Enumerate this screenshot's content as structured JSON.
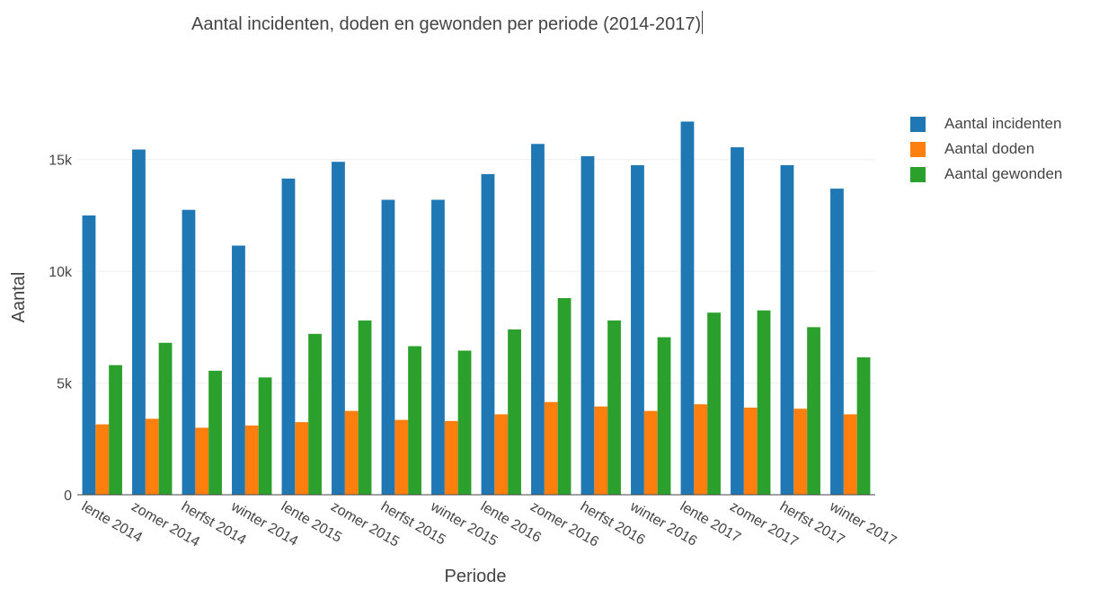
{
  "chart_data": {
    "type": "bar",
    "title": "Aantal incidenten, doden en gewonden per periode (2014-2017)",
    "xlabel": "Periode",
    "ylabel": "Aantal",
    "ylim": [
      0,
      17500
    ],
    "yticks": [
      0,
      5000,
      10000,
      15000
    ],
    "ytick_labels": [
      "0",
      "5k",
      "10k",
      "15k"
    ],
    "grid": true,
    "legend_position": "top-right",
    "categories": [
      "lente 2014",
      "zomer 2014",
      "herfst 2014",
      "winter 2014",
      "lente 2015",
      "zomer 2015",
      "herfst 2015",
      "winter 2015",
      "lente 2016",
      "zomer 2016",
      "herfst 2016",
      "winter 2016",
      "lente 2017",
      "zomer 2017",
      "herfst 2017",
      "winter 2017"
    ],
    "series": [
      {
        "name": "Aantal incidenten",
        "color": "#1f77b4",
        "values": [
          12500,
          15450,
          12750,
          11150,
          14150,
          14900,
          13200,
          13200,
          14350,
          15700,
          15150,
          14750,
          16700,
          15550,
          14750,
          13700
        ]
      },
      {
        "name": "Aantal doden",
        "color": "#ff7f0e",
        "values": [
          3150,
          3400,
          3000,
          3100,
          3250,
          3750,
          3350,
          3300,
          3600,
          4150,
          3950,
          3750,
          4050,
          3900,
          3850,
          3600
        ]
      },
      {
        "name": "Aantal gewonden",
        "color": "#2ca02c",
        "values": [
          5800,
          6800,
          5550,
          5250,
          7200,
          7800,
          6650,
          6450,
          7400,
          8800,
          7800,
          7050,
          8150,
          8250,
          7500,
          6150
        ]
      }
    ]
  }
}
